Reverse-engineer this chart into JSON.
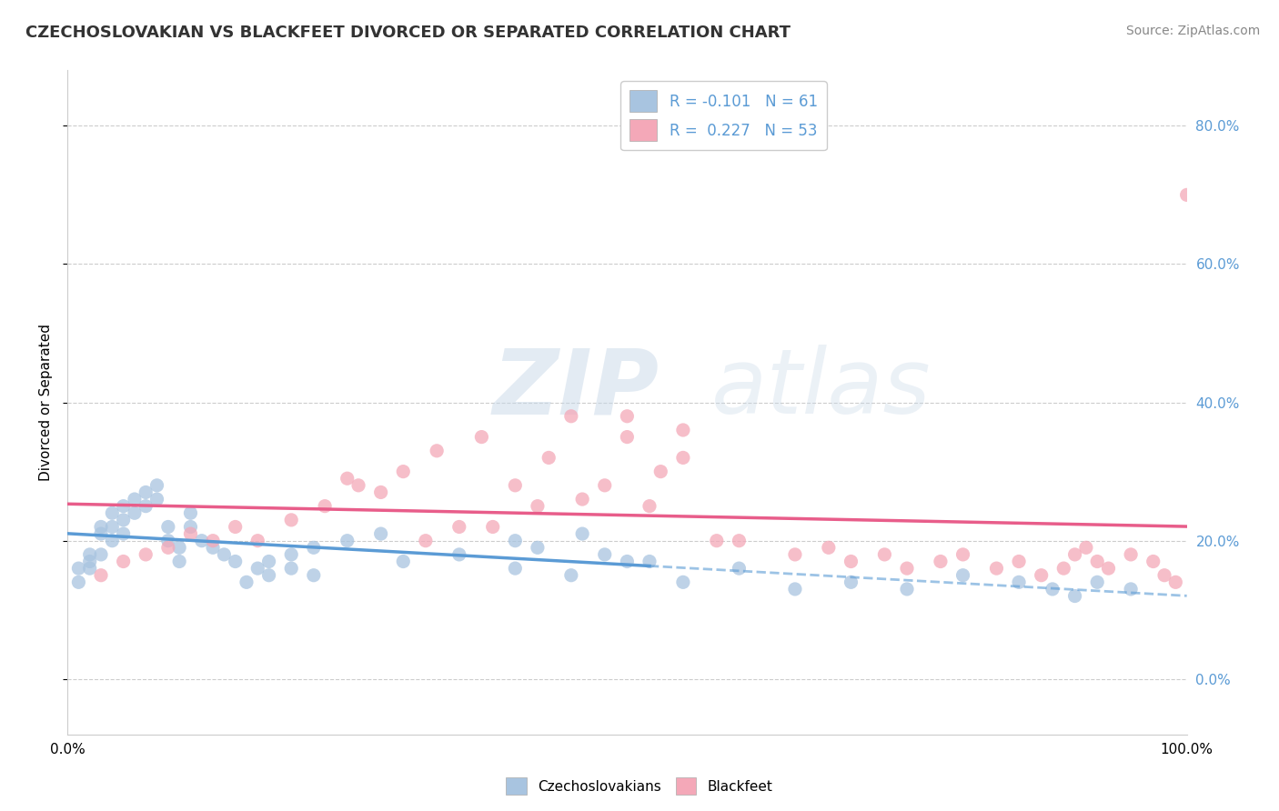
{
  "title": "CZECHOSLOVAKIAN VS BLACKFEET DIVORCED OR SEPARATED CORRELATION CHART",
  "source": "Source: ZipAtlas.com",
  "ylabel": "Divorced or Separated",
  "legend_czech": "Czechoslovakians",
  "legend_black": "Blackfeet",
  "czech_R": -0.101,
  "czech_N": 61,
  "black_R": 0.227,
  "black_N": 53,
  "czech_color": "#a8c4e0",
  "black_color": "#f4a8b8",
  "czech_line_color": "#5b9bd5",
  "black_line_color": "#e85d8a",
  "background_color": "#ffffff",
  "grid_color": "#cccccc",
  "ytick_values": [
    0,
    20,
    40,
    60,
    80
  ],
  "xlim": [
    0,
    100
  ],
  "ylim": [
    -8,
    88
  ],
  "watermark_ZIP": "ZIP",
  "watermark_atlas": "atlas",
  "title_fontsize": 13,
  "czech_scatter_x": [
    1,
    1,
    2,
    2,
    2,
    3,
    3,
    3,
    4,
    4,
    4,
    5,
    5,
    5,
    6,
    6,
    7,
    7,
    8,
    8,
    9,
    9,
    10,
    10,
    11,
    11,
    12,
    13,
    14,
    15,
    16,
    17,
    18,
    20,
    22,
    25,
    28,
    30,
    35,
    40,
    45,
    50,
    55,
    60,
    65,
    70,
    75,
    80,
    85,
    88,
    90,
    92,
    95,
    40,
    42,
    46,
    48,
    52,
    18,
    20,
    22
  ],
  "czech_scatter_y": [
    14,
    16,
    17,
    18,
    16,
    22,
    21,
    18,
    24,
    22,
    20,
    25,
    23,
    21,
    26,
    24,
    27,
    25,
    28,
    26,
    22,
    20,
    19,
    17,
    24,
    22,
    20,
    19,
    18,
    17,
    14,
    16,
    15,
    18,
    19,
    20,
    21,
    17,
    18,
    16,
    15,
    17,
    14,
    16,
    13,
    14,
    13,
    15,
    14,
    13,
    12,
    14,
    13,
    20,
    19,
    21,
    18,
    17,
    17,
    16,
    15
  ],
  "black_scatter_x": [
    3,
    5,
    7,
    9,
    11,
    13,
    15,
    17,
    20,
    23,
    26,
    30,
    33,
    37,
    40,
    43,
    46,
    50,
    53,
    38,
    42,
    55,
    25,
    28,
    60,
    65,
    68,
    70,
    73,
    75,
    78,
    80,
    83,
    85,
    87,
    89,
    90,
    91,
    92,
    93,
    95,
    97,
    98,
    99,
    100,
    45,
    50,
    55,
    35,
    32,
    48,
    52,
    58
  ],
  "black_scatter_y": [
    15,
    17,
    18,
    19,
    21,
    20,
    22,
    20,
    23,
    25,
    28,
    30,
    33,
    35,
    28,
    32,
    26,
    38,
    30,
    22,
    25,
    36,
    29,
    27,
    20,
    18,
    19,
    17,
    18,
    16,
    17,
    18,
    16,
    17,
    15,
    16,
    18,
    19,
    17,
    16,
    18,
    17,
    15,
    14,
    70,
    38,
    35,
    32,
    22,
    20,
    28,
    25,
    20
  ]
}
